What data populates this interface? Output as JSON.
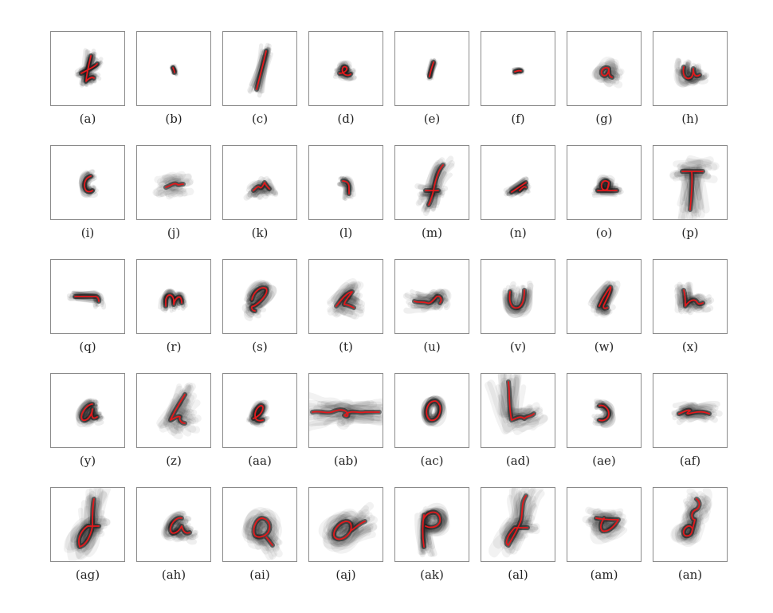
{
  "figure": {
    "panels": [
      {
        "label": "(a)",
        "glyph": "t",
        "spread": "small"
      },
      {
        "label": "(b)",
        "glyph": "dot",
        "spread": "tiny"
      },
      {
        "label": "(c)",
        "glyph": "slash-long",
        "spread": "small"
      },
      {
        "label": "(d)",
        "glyph": "e-small",
        "spread": "small"
      },
      {
        "label": "(e)",
        "glyph": "slash-short",
        "spread": "tiny"
      },
      {
        "label": "(f)",
        "glyph": "tick",
        "spread": "tiny"
      },
      {
        "label": "(g)",
        "glyph": "a-large",
        "spread": "large"
      },
      {
        "label": "(h)",
        "glyph": "u-hook",
        "spread": "medium"
      },
      {
        "label": "(i)",
        "glyph": "c",
        "spread": "small"
      },
      {
        "label": "(j)",
        "glyph": "squiggle",
        "spread": "large"
      },
      {
        "label": "(k)",
        "glyph": "n-slant",
        "spread": "medium"
      },
      {
        "label": "(l)",
        "glyph": "i-drop",
        "spread": "small"
      },
      {
        "label": "(m)",
        "glyph": "f",
        "spread": "medium"
      },
      {
        "label": "(n)",
        "glyph": "arrow",
        "spread": "small"
      },
      {
        "label": "(o)",
        "glyph": "a-under",
        "spread": "small"
      },
      {
        "label": "(p)",
        "glyph": "T",
        "spread": "large"
      },
      {
        "label": "(q)",
        "glyph": "dash-curl",
        "spread": "small"
      },
      {
        "label": "(r)",
        "glyph": "n",
        "spread": "small"
      },
      {
        "label": "(s)",
        "glyph": "l-loop",
        "spread": "medium"
      },
      {
        "label": "(t)",
        "glyph": "k-loop",
        "spread": "large"
      },
      {
        "label": "(u)",
        "glyph": "wave",
        "spread": "medium"
      },
      {
        "label": "(v)",
        "glyph": "u-white",
        "spread": "medium"
      },
      {
        "label": "(w)",
        "glyph": "l-loop-2",
        "spread": "medium"
      },
      {
        "label": "(x)",
        "glyph": "h",
        "spread": "medium"
      },
      {
        "label": "(y)",
        "glyph": "a-loop",
        "spread": "small"
      },
      {
        "label": "(z)",
        "glyph": "k-tall",
        "spread": "large"
      },
      {
        "label": "(aa)",
        "glyph": "e-loop",
        "spread": "small"
      },
      {
        "label": "(ab)",
        "glyph": "wave-long",
        "spread": "large"
      },
      {
        "label": "(ac)",
        "glyph": "o-ring",
        "spread": "small"
      },
      {
        "label": "(ad)",
        "glyph": "L-wave",
        "spread": "large"
      },
      {
        "label": "(ae)",
        "glyph": "J",
        "spread": "small"
      },
      {
        "label": "(af)",
        "glyph": "cursive-e",
        "spread": "medium"
      },
      {
        "label": "(ag)",
        "glyph": "f-loop",
        "spread": "large"
      },
      {
        "label": "(ah)",
        "glyph": "a-ring",
        "spread": "medium"
      },
      {
        "label": "(ai)",
        "glyph": "q-ring",
        "spread": "large"
      },
      {
        "label": "(aj)",
        "glyph": "o-tail",
        "spread": "large"
      },
      {
        "label": "(ak)",
        "glyph": "p-loop",
        "spread": "medium"
      },
      {
        "label": "(al)",
        "glyph": "f-tall",
        "spread": "large"
      },
      {
        "label": "(am)",
        "glyph": "leaf",
        "spread": "large"
      },
      {
        "label": "(an)",
        "glyph": "g-loop",
        "spread": "large"
      }
    ],
    "colors": {
      "mean_path": "#e3191c",
      "density": "#000000",
      "border": "#8a8a8a"
    }
  }
}
